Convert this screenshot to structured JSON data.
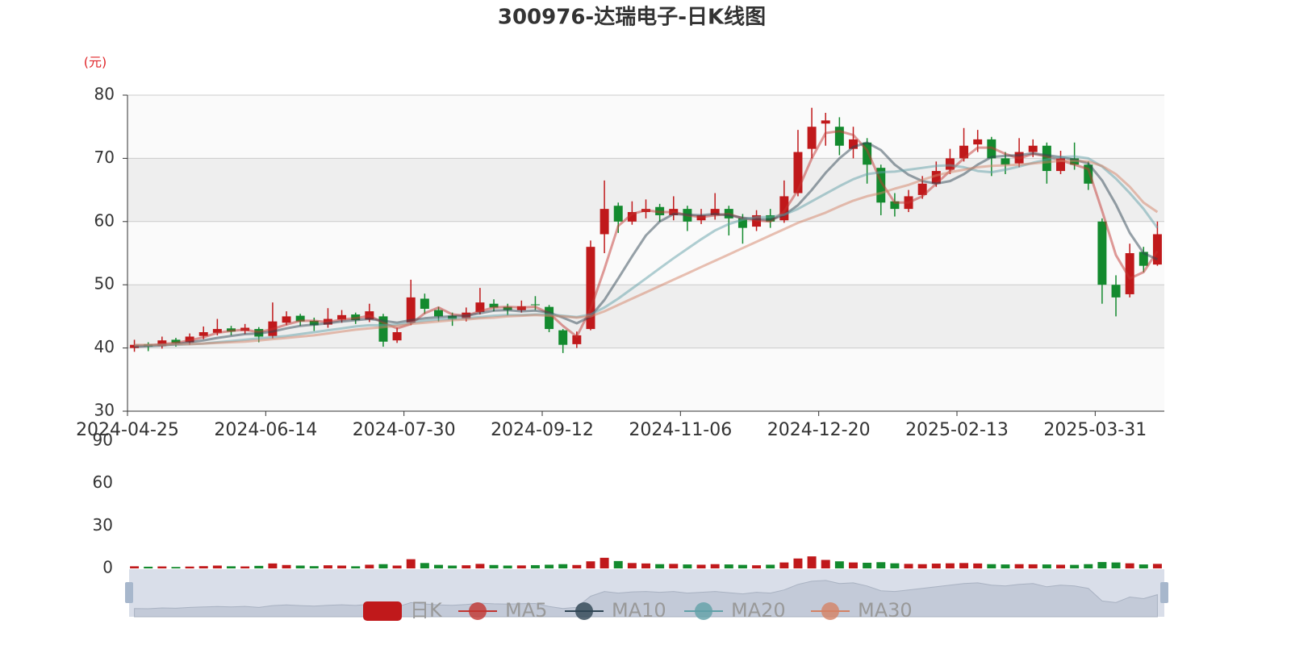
{
  "chart_data": [
    {
      "type": "candlestick",
      "title": "300976-达瑞电子-日K线图",
      "y_label": "(元)",
      "categories": [
        "2024-04-25",
        null,
        null,
        null,
        null,
        null,
        null,
        null,
        null,
        null,
        "2024-06-14",
        null,
        null,
        null,
        null,
        null,
        null,
        null,
        null,
        null,
        "2024-07-30",
        null,
        null,
        null,
        null,
        null,
        null,
        null,
        null,
        null,
        "2024-09-12",
        null,
        null,
        null,
        null,
        null,
        null,
        null,
        null,
        null,
        "2024-11-06",
        null,
        null,
        null,
        null,
        null,
        null,
        null,
        null,
        null,
        "2024-12-20",
        null,
        null,
        null,
        null,
        null,
        null,
        null,
        null,
        null,
        "2025-02-13",
        null,
        null,
        null,
        null,
        null,
        null,
        null,
        null,
        null,
        "2025-03-31",
        null,
        null,
        null,
        null
      ],
      "ylim": [
        30,
        80
      ],
      "yticks": [
        30,
        40,
        50,
        60,
        70,
        80
      ],
      "grid": true,
      "legend": "bottom",
      "series": [
        {
          "name": "日K",
          "color": "#c0191b",
          "down_color": "#138a2e",
          "values": [
            [
              40.0,
              40.5,
              39.4,
              41.3
            ],
            [
              40.6,
              40.2,
              39.5,
              40.9
            ],
            [
              40.3,
              41.2,
              39.9,
              41.8
            ],
            [
              41.3,
              40.8,
              40.2,
              41.6
            ],
            [
              40.9,
              41.8,
              40.5,
              42.3
            ],
            [
              41.9,
              42.5,
              41.4,
              43.4
            ],
            [
              42.4,
              43.0,
              42.0,
              44.6
            ],
            [
              43.1,
              42.6,
              42.0,
              43.5
            ],
            [
              42.7,
              43.2,
              42.2,
              43.8
            ],
            [
              43.0,
              41.8,
              40.9,
              43.3
            ],
            [
              41.9,
              44.2,
              41.5,
              47.2
            ],
            [
              44.0,
              45.0,
              43.6,
              45.8
            ],
            [
              45.1,
              44.2,
              43.5,
              45.4
            ],
            [
              44.3,
              43.6,
              42.7,
              44.8
            ],
            [
              43.7,
              44.6,
              43.2,
              46.3
            ],
            [
              44.5,
              45.2,
              44.0,
              46.0
            ],
            [
              45.3,
              44.4,
              43.8,
              45.6
            ],
            [
              44.5,
              45.8,
              44.1,
              47.0
            ],
            [
              45.0,
              41.0,
              40.2,
              45.4
            ],
            [
              41.2,
              42.5,
              40.8,
              43.2
            ],
            [
              44.0,
              48.0,
              43.6,
              50.8
            ],
            [
              47.8,
              46.2,
              45.4,
              48.6
            ],
            [
              46.0,
              45.0,
              44.2,
              46.5
            ],
            [
              45.1,
              44.6,
              43.5,
              45.6
            ],
            [
              44.7,
              45.6,
              44.2,
              46.4
            ],
            [
              45.7,
              47.2,
              45.3,
              49.5
            ],
            [
              47.0,
              46.4,
              45.8,
              47.7
            ],
            [
              46.5,
              46.0,
              45.2,
              47.0
            ],
            [
              46.0,
              46.6,
              45.6,
              47.5
            ],
            [
              46.9,
              46.8,
              46.0,
              48.2
            ],
            [
              46.5,
              43.0,
              42.5,
              46.8
            ],
            [
              42.8,
              40.5,
              39.2,
              43.0
            ],
            [
              40.6,
              42.0,
              40.0,
              42.6
            ],
            [
              43.0,
              56.0,
              42.8,
              57.0
            ],
            [
              58.0,
              62.0,
              55.0,
              66.5
            ],
            [
              62.5,
              60.0,
              58.2,
              63.0
            ],
            [
              60.0,
              61.5,
              59.5,
              63.2
            ],
            [
              61.5,
              62.0,
              60.5,
              63.5
            ],
            [
              62.3,
              61.0,
              60.0,
              62.8
            ],
            [
              61.0,
              62.0,
              60.2,
              64.0
            ],
            [
              62.0,
              60.0,
              58.5,
              62.5
            ],
            [
              60.2,
              61.0,
              59.6,
              62.0
            ],
            [
              61.0,
              62.0,
              60.3,
              64.5
            ],
            [
              62.0,
              60.5,
              57.8,
              62.5
            ],
            [
              60.5,
              59.0,
              56.5,
              61.2
            ],
            [
              59.2,
              61.0,
              58.5,
              61.8
            ],
            [
              61.0,
              60.0,
              59.0,
              62.0
            ],
            [
              60.2,
              64.0,
              59.8,
              66.5
            ],
            [
              64.5,
              71.0,
              64.0,
              74.5
            ],
            [
              71.5,
              75.0,
              70.0,
              78.0
            ],
            [
              75.5,
              76.0,
              72.0,
              77.2
            ],
            [
              75.0,
              72.0,
              70.5,
              76.5
            ],
            [
              71.5,
              73.0,
              70.0,
              75.0
            ],
            [
              72.5,
              69.0,
              66.0,
              73.2
            ],
            [
              68.5,
              63.0,
              61.0,
              69.0
            ],
            [
              63.2,
              62.0,
              60.8,
              64.5
            ],
            [
              62.0,
              64.0,
              61.5,
              65.0
            ],
            [
              64.2,
              66.0,
              63.6,
              67.2
            ],
            [
              66.0,
              68.0,
              65.5,
              69.5
            ],
            [
              68.2,
              70.0,
              67.5,
              71.5
            ],
            [
              70.0,
              72.0,
              69.5,
              74.8
            ],
            [
              72.2,
              73.0,
              71.0,
              74.5
            ],
            [
              73.0,
              70.0,
              67.2,
              73.4
            ],
            [
              70.0,
              69.0,
              67.5,
              71.0
            ],
            [
              69.2,
              71.0,
              68.6,
              73.2
            ],
            [
              71.0,
              72.0,
              70.2,
              73.0
            ],
            [
              72.0,
              68.0,
              66.0,
              72.5
            ],
            [
              68.0,
              70.0,
              67.5,
              71.2
            ],
            [
              70.0,
              69.0,
              68.2,
              72.5
            ],
            [
              69.0,
              66.0,
              65.0,
              69.5
            ],
            [
              60.0,
              50.0,
              47.0,
              60.5
            ],
            [
              50.0,
              48.0,
              45.0,
              51.5
            ],
            [
              48.5,
              55.0,
              48.0,
              56.5
            ],
            [
              55.2,
              53.0,
              52.0,
              56.0
            ],
            [
              53.2,
              58.0,
              53.0,
              60.0
            ]
          ]
        },
        {
          "name": "MA5",
          "color": "#c23531",
          "values": [
            40.3,
            40.4,
            40.6,
            40.8,
            41.2,
            41.7,
            42.4,
            42.7,
            42.9,
            42.5,
            43.0,
            43.7,
            44.3,
            44.3,
            44.1,
            44.5,
            44.7,
            45.1,
            44.0,
            43.1,
            43.8,
            45.5,
            46.4,
            45.3,
            45.1,
            45.8,
            46.4,
            46.5,
            46.4,
            46.5,
            45.5,
            43.5,
            41.8,
            46.2,
            52.5,
            59.3,
            61.2,
            61.8,
            61.5,
            61.5,
            61.0,
            60.7,
            61.0,
            61.2,
            60.5,
            60.2,
            60.0,
            61.6,
            65.0,
            70.0,
            74.0,
            74.3,
            73.7,
            71.3,
            66.3,
            63.0,
            63.0,
            64.0,
            66.0,
            68.0,
            70.0,
            71.7,
            71.7,
            70.7,
            70.0,
            70.7,
            70.3,
            69.7,
            69.0,
            68.3,
            61.7,
            54.7,
            51.0,
            52.0,
            55.3
          ]
        },
        {
          "name": "MA10",
          "color": "#2f4554",
          "values": [
            40.2,
            40.3,
            40.4,
            40.6,
            40.9,
            41.2,
            41.6,
            41.9,
            42.2,
            42.3,
            42.6,
            43.1,
            43.5,
            43.7,
            43.9,
            44.2,
            44.4,
            44.6,
            44.3,
            44.0,
            44.4,
            44.7,
            44.9,
            45.0,
            45.1,
            45.5,
            45.9,
            46.0,
            45.8,
            45.9,
            45.6,
            44.8,
            43.9,
            45.0,
            47.6,
            51.0,
            54.5,
            57.8,
            60.0,
            61.2,
            61.1,
            61.0,
            61.2,
            61.0,
            60.6,
            60.4,
            60.3,
            61.0,
            62.6,
            65.0,
            67.7,
            70.0,
            71.8,
            72.5,
            71.3,
            69.0,
            67.4,
            66.4,
            66.0,
            66.4,
            67.5,
            69.0,
            70.2,
            70.4,
            70.5,
            70.8,
            70.5,
            70.2,
            69.8,
            69.2,
            66.5,
            62.7,
            58.2,
            55.0,
            54.0
          ]
        },
        {
          "name": "MA20",
          "color": "#61a0a8",
          "values": [
            40.4,
            40.4,
            40.5,
            40.5,
            40.6,
            40.7,
            40.9,
            41.1,
            41.3,
            41.5,
            41.7,
            41.9,
            42.2,
            42.5,
            42.8,
            43.1,
            43.4,
            43.6,
            43.6,
            43.7,
            44.0,
            44.3,
            44.5,
            44.6,
            44.7,
            44.9,
            45.1,
            45.2,
            45.2,
            45.3,
            45.3,
            45.1,
            44.9,
            45.3,
            46.4,
            47.8,
            49.4,
            51.0,
            52.6,
            54.2,
            55.7,
            57.2,
            58.6,
            59.6,
            60.3,
            60.7,
            60.7,
            61.1,
            62.0,
            63.2,
            64.4,
            65.6,
            66.7,
            67.5,
            67.8,
            67.9,
            68.2,
            68.5,
            68.8,
            68.9,
            68.6,
            68.0,
            67.8,
            68.2,
            68.7,
            69.3,
            69.8,
            70.2,
            70.3,
            70.0,
            68.7,
            66.8,
            64.5,
            62.0,
            59.0
          ]
        },
        {
          "name": "MA30",
          "color": "#d48265",
          "values": [
            40.5,
            40.5,
            40.5,
            40.6,
            40.6,
            40.7,
            40.8,
            40.9,
            41.0,
            41.2,
            41.4,
            41.6,
            41.8,
            42.0,
            42.3,
            42.6,
            42.9,
            43.1,
            43.3,
            43.5,
            43.8,
            44.0,
            44.2,
            44.4,
            44.5,
            44.7,
            44.8,
            45.0,
            45.1,
            45.2,
            45.1,
            45.0,
            44.8,
            45.0,
            45.8,
            46.8,
            47.8,
            48.8,
            49.8,
            50.8,
            51.8,
            52.8,
            53.8,
            54.8,
            55.8,
            56.8,
            57.8,
            58.8,
            59.8,
            60.6,
            61.4,
            62.4,
            63.3,
            64.0,
            64.5,
            65.2,
            65.8,
            66.6,
            67.3,
            67.8,
            68.2,
            68.6,
            68.8,
            68.9,
            69.0,
            69.2,
            69.4,
            69.6,
            69.6,
            69.5,
            68.8,
            67.5,
            65.5,
            63.0,
            61.5
          ]
        }
      ]
    },
    {
      "type": "bar",
      "ylim": [
        0,
        90
      ],
      "yticks": [
        0,
        30,
        60,
        90
      ],
      "values": [
        1.5,
        1.2,
        1.4,
        1.0,
        1.3,
        1.6,
        2.0,
        1.5,
        1.4,
        1.8,
        3.5,
        2.4,
        2.0,
        1.6,
        2.2,
        2.0,
        1.5,
        2.6,
        3.0,
        2.0,
        6.5,
        3.8,
        2.5,
        2.0,
        2.2,
        3.2,
        2.4,
        2.0,
        2.1,
        2.3,
        2.6,
        3.0,
        2.4,
        5.0,
        7.5,
        5.2,
        3.8,
        3.5,
        3.0,
        3.2,
        2.8,
        2.6,
        3.0,
        2.8,
        2.5,
        2.2,
        2.6,
        4.2,
        7.0,
        8.5,
        6.0,
        5.0,
        4.2,
        4.0,
        4.4,
        3.6,
        3.2,
        3.0,
        3.4,
        3.6,
        3.8,
        3.5,
        3.0,
        2.8,
        3.0,
        2.9,
        2.8,
        2.6,
        2.5,
        3.0,
        4.5,
        4.2,
        3.6,
        2.8,
        3.2
      ]
    }
  ]
}
